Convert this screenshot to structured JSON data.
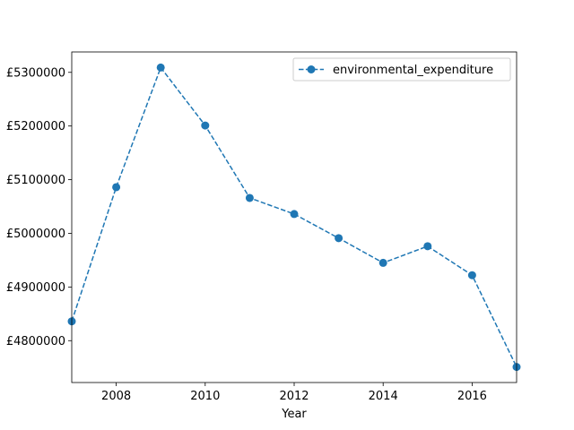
{
  "chart_data": {
    "type": "line",
    "x": [
      2007,
      2008,
      2009,
      2010,
      2011,
      2012,
      2013,
      2014,
      2015,
      2016,
      2017
    ],
    "series": [
      {
        "name": "environmental_expenditure",
        "values": [
          4836000,
          5086000,
          5309000,
          5201000,
          5066000,
          5036000,
          4991000,
          4945000,
          4976000,
          4922000,
          4751000
        ],
        "color": "#1f77b4",
        "line_style": "dashed",
        "marker": "circle"
      }
    ],
    "title": "",
    "xlabel": "Year",
    "ylabel": "",
    "xlim": [
      2007,
      2017
    ],
    "ylim": [
      4722000,
      5338000
    ],
    "x_ticks": [
      2008,
      2010,
      2012,
      2014,
      2016
    ],
    "x_tick_labels": [
      "2008",
      "2010",
      "2012",
      "2014",
      "2016"
    ],
    "y_ticks": [
      4800000,
      4900000,
      5000000,
      5100000,
      5200000,
      5300000
    ],
    "y_tick_labels": [
      "£4800000",
      "£4900000",
      "£5000000",
      "£5100000",
      "£5200000",
      "£5300000"
    ],
    "grid": false,
    "legend_position": "top-right"
  }
}
